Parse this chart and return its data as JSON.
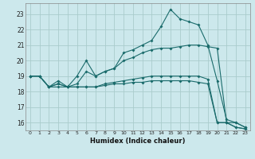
{
  "background_color": "#cce8ec",
  "grid_color": "#aacccc",
  "line_color": "#1a6b6b",
  "xlabel": "Humidex (Indice chaleur)",
  "ylim": [
    15.5,
    23.7
  ],
  "xlim": [
    -0.5,
    23.5
  ],
  "yticks": [
    16,
    17,
    18,
    19,
    20,
    21,
    22,
    23
  ],
  "xticks": [
    0,
    1,
    2,
    3,
    4,
    5,
    6,
    7,
    8,
    9,
    10,
    11,
    12,
    13,
    14,
    15,
    16,
    17,
    18,
    19,
    20,
    21,
    22,
    23
  ],
  "line1_x": [
    0,
    1,
    2,
    3,
    4,
    5,
    6,
    7,
    8,
    9,
    10,
    11,
    12,
    13,
    14,
    15,
    16,
    17,
    18,
    19,
    20,
    21,
    22,
    23
  ],
  "line1_y": [
    19.0,
    19.0,
    18.3,
    18.7,
    18.3,
    19.0,
    20.0,
    19.0,
    19.3,
    19.5,
    20.5,
    20.7,
    21.0,
    21.3,
    22.2,
    23.3,
    22.7,
    22.5,
    22.3,
    21.0,
    18.7,
    16.2,
    16.0,
    15.7
  ],
  "line2_x": [
    0,
    1,
    2,
    3,
    4,
    5,
    6,
    7,
    8,
    9,
    10,
    11,
    12,
    13,
    14,
    15,
    16,
    17,
    18,
    19,
    20,
    21,
    22,
    23
  ],
  "line2_y": [
    19.0,
    19.0,
    18.3,
    18.5,
    18.3,
    18.5,
    19.3,
    19.0,
    19.3,
    19.5,
    20.0,
    20.2,
    20.5,
    20.7,
    20.8,
    20.8,
    20.9,
    21.0,
    21.0,
    20.9,
    20.8,
    16.0,
    16.0,
    15.7
  ],
  "line3_x": [
    0,
    1,
    2,
    3,
    4,
    5,
    6,
    7,
    8,
    9,
    10,
    11,
    12,
    13,
    14,
    15,
    16,
    17,
    18,
    19,
    20,
    21,
    22,
    23
  ],
  "line3_y": [
    19.0,
    19.0,
    18.3,
    18.5,
    18.3,
    18.3,
    18.3,
    18.3,
    18.5,
    18.6,
    18.7,
    18.8,
    18.9,
    19.0,
    19.0,
    19.0,
    19.0,
    19.0,
    19.0,
    18.8,
    16.0,
    16.0,
    15.7,
    15.6
  ],
  "line4_x": [
    0,
    1,
    2,
    3,
    4,
    5,
    6,
    7,
    8,
    9,
    10,
    11,
    12,
    13,
    14,
    15,
    16,
    17,
    18,
    19,
    20,
    21,
    22,
    23
  ],
  "line4_y": [
    19.0,
    19.0,
    18.3,
    18.3,
    18.3,
    18.3,
    18.3,
    18.3,
    18.4,
    18.5,
    18.5,
    18.6,
    18.6,
    18.7,
    18.7,
    18.7,
    18.7,
    18.7,
    18.6,
    18.5,
    16.0,
    16.0,
    15.7,
    15.6
  ]
}
